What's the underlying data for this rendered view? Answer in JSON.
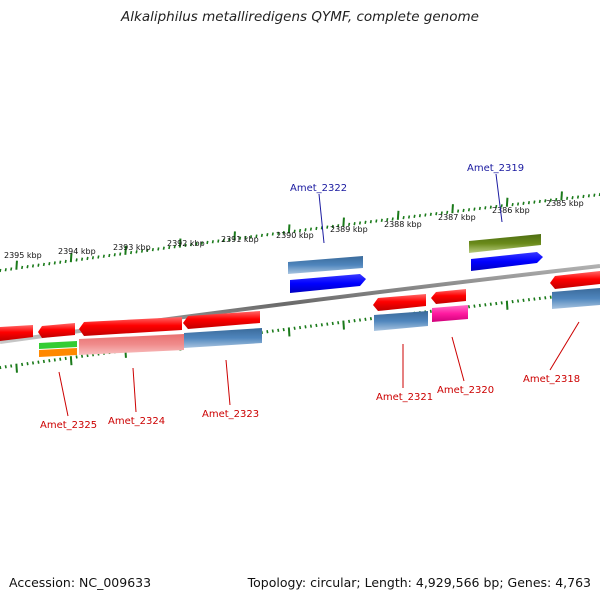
{
  "title": "Alkaliphilus metalliredigens QYMF, complete genome",
  "footer": {
    "accession": "Accession: NC_009633",
    "stats": "Topology: circular; Length: 4,929,566 bp; Genes: 4,763"
  },
  "colors": {
    "backbone": "#808080",
    "scale_ticks": "#1a7a1a",
    "gene_red": "#ff0000",
    "gene_blue": "#0000ff",
    "gene_steelblue": "#4a80b8",
    "gene_olive": "#6a8a1a",
    "gene_pink": "#ff1aa0",
    "gene_salmon": "#f08080",
    "gene_green": "#33cc33",
    "gene_orange": "#ff8800",
    "label_forward": "#1a1aa0",
    "label_reverse": "#cc0000"
  },
  "scale_labels": [
    "2395 kbp",
    "2394 kbp",
    "2393 kbp",
    "2392 kbp",
    "2391 kbp",
    "2390 kbp",
    "2389 kbp",
    "2388 kbp",
    "2387 kbp",
    "2386 kbp",
    "2385 kbp"
  ],
  "gene_labels": [
    "Amet_2322",
    "Amet_2319",
    "Amet_2325",
    "Amet_2324",
    "Amet_2323",
    "Amet_2321",
    "Amet_2320",
    "Amet_2318"
  ]
}
